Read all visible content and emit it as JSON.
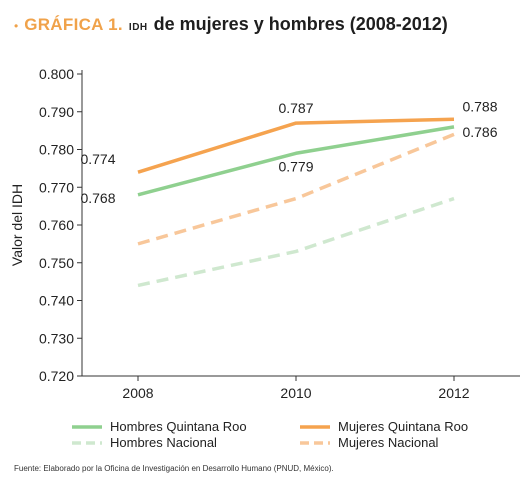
{
  "title": {
    "bullet": "•",
    "prefix": "GRÁFICA 1.",
    "small": "IDH",
    "main": "de mujeres y hombres (2008-2012)"
  },
  "source": "Fuente: Elaborado por la Oficina de Investigación en Desarrollo Humano (PNUD, México).",
  "chart_data": {
    "type": "line",
    "x": [
      "2008",
      "2010",
      "2012"
    ],
    "ylabel": "Valor del IDH",
    "ylim": [
      0.72,
      0.8
    ],
    "yticks": [
      "0.720",
      "0.730",
      "0.740",
      "0.750",
      "0.760",
      "0.770",
      "0.780",
      "0.790",
      "0.800"
    ],
    "grid": false,
    "legend_position": "bottom",
    "series": [
      {
        "name": "Hombres Quintana Roo",
        "values": [
          0.768,
          0.779,
          0.786
        ],
        "color": "#8fd08f",
        "dashed": false
      },
      {
        "name": "Mujeres Quintana Roo",
        "values": [
          0.774,
          0.787,
          0.788
        ],
        "color": "#f5a34f",
        "dashed": false
      },
      {
        "name": "Hombres Nacional",
        "values": [
          0.744,
          0.753,
          0.767
        ],
        "color": "#cfe8cf",
        "dashed": true
      },
      {
        "name": "Mujeres Nacional",
        "values": [
          0.755,
          0.767,
          0.784
        ],
        "color": "#f8c79a",
        "dashed": true
      }
    ],
    "data_labels": [
      {
        "text": "0.774",
        "x": "2008",
        "y": 0.774
      },
      {
        "text": "0.768",
        "x": "2008",
        "y": 0.768
      },
      {
        "text": "0.787",
        "x": "2010",
        "y": 0.787
      },
      {
        "text": "0.779",
        "x": "2010",
        "y": 0.779
      },
      {
        "text": "0.788",
        "x": "2012",
        "y": 0.788
      },
      {
        "text": "0.786",
        "x": "2012",
        "y": 0.786
      }
    ]
  }
}
